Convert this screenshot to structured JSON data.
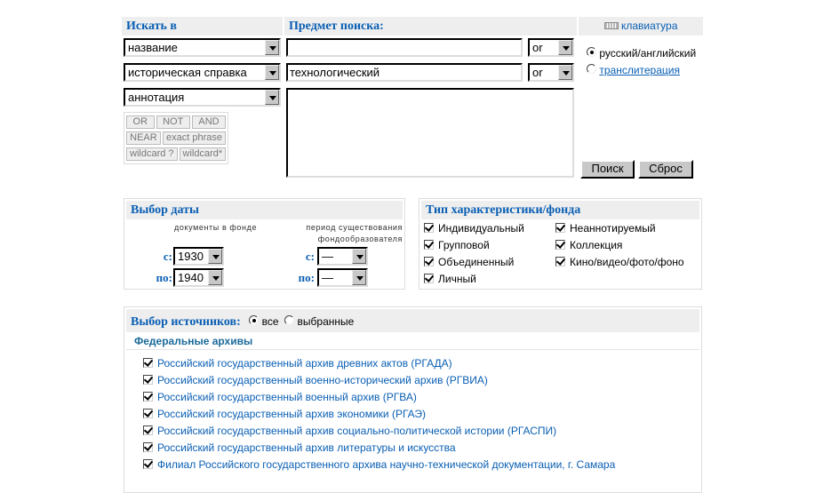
{
  "search": {
    "search_in_title": "Искать в",
    "subject_title": "Предмет поиска:",
    "keyboard_label": "клавиатура",
    "fields": [
      "название",
      "историческая справка",
      "аннотация"
    ],
    "queries": [
      "",
      "технологический"
    ],
    "ops": [
      "or",
      "or"
    ],
    "textarea_value": "",
    "operators": [
      "OR",
      "NOT",
      "AND",
      "NEAR",
      "exact phrase",
      "wildcard ?",
      "wildcard*"
    ],
    "layout_options": [
      {
        "label": "русский/английский",
        "selected": true
      },
      {
        "label": "транслитерация",
        "selected": false
      }
    ],
    "search_button": "Поиск",
    "reset_button": "Сброс"
  },
  "dates": {
    "title": "Выбор даты",
    "docs_label": "документы в фонде",
    "period_label_1": "период существования",
    "period_label_2": "фондообразователя",
    "from_label": "с:",
    "to_label": "по:",
    "docs_from": "1930",
    "docs_to": "1940",
    "period_from": "—",
    "period_to": "—"
  },
  "types": {
    "title": "Тип характеристики/фонда",
    "items": [
      {
        "label": "Индивидуальный",
        "checked": true
      },
      {
        "label": "Групповой",
        "checked": true
      },
      {
        "label": "Объединенный",
        "checked": true
      },
      {
        "label": "Личный",
        "checked": true
      },
      {
        "label": "Неаннотируемый",
        "checked": true
      },
      {
        "label": "Коллекция",
        "checked": true
      },
      {
        "label": "Кино/видео/фото/фоно",
        "checked": true
      }
    ]
  },
  "sources": {
    "title": "Выбор источников:",
    "all_label": "все",
    "selected_label": "выбранные",
    "mode": "все",
    "group_title": "Федеральные архивы",
    "archives": [
      {
        "label": "Российский государственный архив древних актов (РГАДА)",
        "checked": true
      },
      {
        "label": "Российский государственный военно-исторический архив (РГВИА)",
        "checked": true
      },
      {
        "label": "Российский государственный военный архив (РГВА)",
        "checked": true
      },
      {
        "label": "Российский государственный архив экономики (РГАЭ)",
        "checked": true
      },
      {
        "label": "Российский государственный архив социально-политической истории (РГАСПИ)",
        "checked": true
      },
      {
        "label": "Российский государственный архив литературы и искусства",
        "checked": true
      },
      {
        "label": "Филиал Российского государственного архива научно-технической документации, г. Самара",
        "checked": true
      }
    ]
  },
  "colors": {
    "accent": "#0a5fb4",
    "header_bg": "#eeeeee"
  }
}
